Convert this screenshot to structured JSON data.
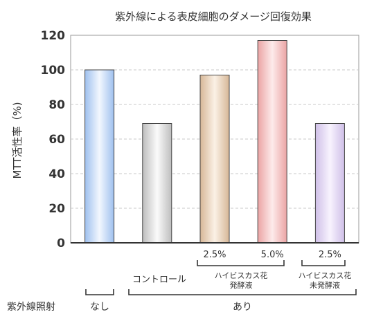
{
  "chart_data": {
    "type": "bar",
    "title": "紫外線による表皮細胞のダメージ回復効果",
    "ylabel": "MTT活性率（%)",
    "ylim": [
      0,
      120
    ],
    "yticks": [
      0,
      20,
      40,
      60,
      80,
      100,
      120
    ],
    "grid": true,
    "bars": [
      {
        "value": 100,
        "concentration": "",
        "color_top": "#9fc0ee",
        "color_mid": "#f2f7fe"
      },
      {
        "value": 69,
        "concentration": "",
        "color_top": "#bdbdbd",
        "color_mid": "#fbfbfb"
      },
      {
        "value": 97,
        "concentration": "2.5%",
        "color_top": "#d6b797",
        "color_mid": "#fbf1e6"
      },
      {
        "value": 117,
        "concentration": "5.0%",
        "color_top": "#eba4a4",
        "color_mid": "#fdebeb"
      },
      {
        "value": 69,
        "concentration": "2.5%",
        "color_top": "#cfbfe8",
        "color_mid": "#f8f3fe"
      }
    ],
    "labels": {
      "control": "コントロール",
      "group_fermented_line1": "ハイビスカス花",
      "group_fermented_line2": "発酵液",
      "group_unfermented_line1": "ハイビスカス花",
      "group_unfermented_line2": "未発酵液",
      "uv_label": "紫外線照射",
      "uv_no": "なし",
      "uv_yes": "あり"
    }
  }
}
